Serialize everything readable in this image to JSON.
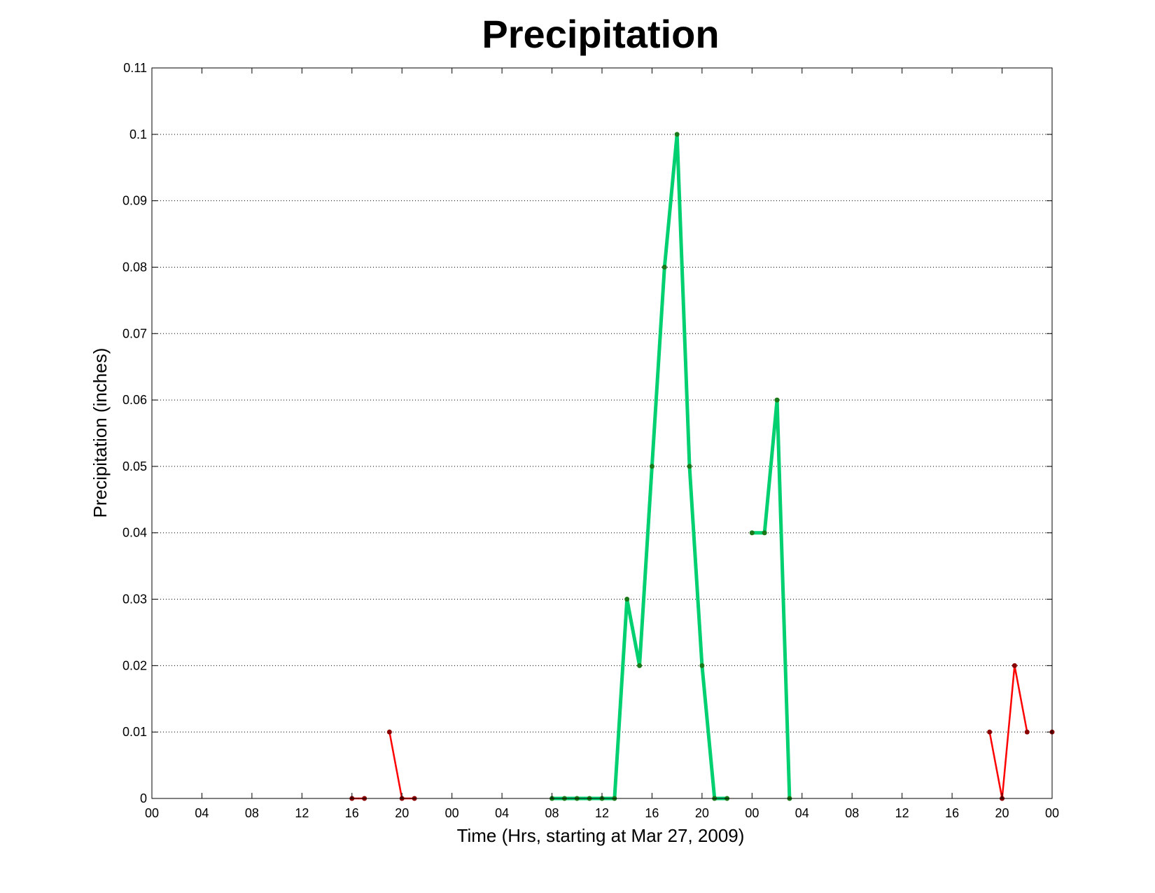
{
  "chart_data": {
    "type": "line",
    "title": "Precipitation",
    "xlabel": "Time (Hrs, starting at Mar 27, 2009)",
    "ylabel": "Precipitation (inches)",
    "xlim": [
      0,
      72
    ],
    "ylim": [
      0,
      0.11
    ],
    "yticks": [
      0,
      0.01,
      0.02,
      0.03,
      0.04,
      0.05,
      0.06,
      0.07,
      0.08,
      0.09,
      0.1,
      0.11
    ],
    "ytick_labels": [
      "0",
      "0.01",
      "0.02",
      "0.03",
      "0.04",
      "0.05",
      "0.06",
      "0.07",
      "0.08",
      "0.09",
      "0.1",
      "0.11"
    ],
    "xticks": [
      0,
      4,
      8,
      12,
      16,
      20,
      24,
      28,
      32,
      36,
      40,
      44,
      48,
      52,
      56,
      60,
      64,
      68,
      72
    ],
    "xtick_labels": [
      "00",
      "04",
      "08",
      "12",
      "16",
      "20",
      "00",
      "04",
      "08",
      "12",
      "16",
      "20",
      "00",
      "04",
      "08",
      "12",
      "16",
      "20",
      "00"
    ],
    "grid": "horizontal dotted",
    "colors": {
      "red": "#ff0000",
      "green": "#00d070",
      "marker": "#1a7a1a",
      "axis": "#000000",
      "grid": "#000000"
    },
    "series": [
      {
        "color": "red",
        "segments": [
          [
            [
              16,
              0
            ],
            [
              17,
              0
            ]
          ],
          [
            [
              19,
              0.01
            ],
            [
              20,
              0
            ],
            [
              21,
              0
            ]
          ],
          [
            [
              67,
              0.01
            ],
            [
              68,
              0
            ],
            [
              69,
              0.02
            ],
            [
              70,
              0.01
            ]
          ],
          [
            [
              72,
              0.01
            ]
          ]
        ]
      },
      {
        "color": "green",
        "segments": [
          [
            [
              32,
              0
            ],
            [
              33,
              0
            ],
            [
              34,
              0
            ],
            [
              35,
              0
            ],
            [
              36,
              0
            ],
            [
              37,
              0
            ],
            [
              38,
              0.03
            ],
            [
              39,
              0.02
            ],
            [
              40,
              0.05
            ],
            [
              41,
              0.08
            ],
            [
              42,
              0.1
            ],
            [
              43,
              0.05
            ],
            [
              44,
              0.02
            ],
            [
              45,
              0
            ],
            [
              46,
              0
            ]
          ],
          [
            [
              48,
              0.04
            ],
            [
              49,
              0.04
            ],
            [
              50,
              0.06
            ],
            [
              51,
              0
            ]
          ]
        ]
      }
    ]
  }
}
